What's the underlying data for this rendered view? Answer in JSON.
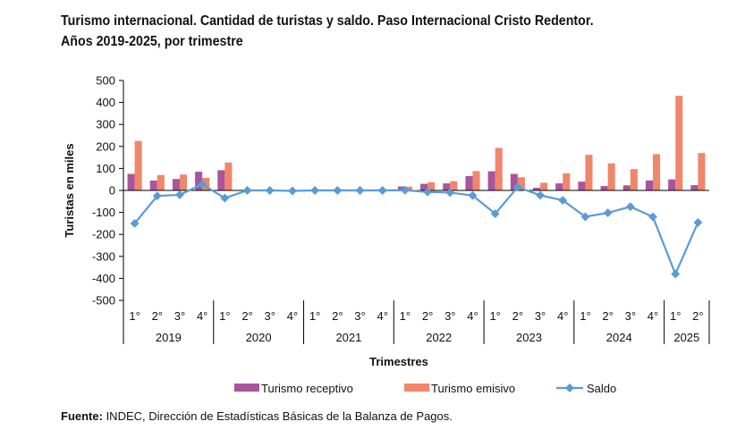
{
  "chart_data": {
    "type": "bar",
    "title_line1": "Turismo internacional. Cantidad de turistas y saldo. Paso Internacional Cristo Redentor.",
    "title_line2": "Años 2019-2025, por trimestre",
    "xlabel": "Trimestres",
    "ylabel": "Turistas en miles",
    "ylim": [
      -500,
      500
    ],
    "yticks": [
      500,
      400,
      300,
      200,
      100,
      0,
      -100,
      -200,
      -300,
      -400,
      -500
    ],
    "quarter_labels": [
      "1°",
      "2°",
      "3°",
      "4°",
      "1°",
      "2°",
      "3°",
      "4°",
      "1°",
      "2°",
      "3°",
      "4°",
      "1°",
      "2°",
      "3°",
      "4°",
      "1°",
      "2°",
      "3°",
      "4°",
      "1°",
      "2°",
      "3°",
      "4°",
      "1°",
      "2°"
    ],
    "years": [
      {
        "label": "2019",
        "quarters": 4
      },
      {
        "label": "2020",
        "quarters": 4
      },
      {
        "label": "2021",
        "quarters": 4
      },
      {
        "label": "2022",
        "quarters": 4
      },
      {
        "label": "2023",
        "quarters": 4
      },
      {
        "label": "2024",
        "quarters": 4
      },
      {
        "label": "2025",
        "quarters": 2
      }
    ],
    "series": [
      {
        "name": "Turismo receptivo",
        "type": "bar",
        "color": "#a8559e",
        "values": [
          75,
          45,
          52,
          85,
          92,
          0,
          0,
          0,
          0,
          0,
          0,
          0,
          18,
          30,
          32,
          65,
          87,
          75,
          12,
          32,
          40,
          20,
          23,
          45,
          50,
          24
        ]
      },
      {
        "name": "Turismo emisivo",
        "type": "bar",
        "color": "#f0866a",
        "values": [
          225,
          70,
          72,
          57,
          127,
          0,
          0,
          0,
          0,
          0,
          0,
          0,
          17,
          37,
          42,
          88,
          193,
          60,
          35,
          78,
          162,
          123,
          97,
          165,
          430,
          170
        ]
      },
      {
        "name": "Saldo",
        "type": "line",
        "color": "#5b9bd5",
        "values": [
          -150,
          -25,
          -20,
          28,
          -35,
          0,
          0,
          -2,
          0,
          0,
          0,
          0,
          1,
          -7,
          -10,
          -23,
          -106,
          15,
          -22,
          -45,
          -120,
          -102,
          -74,
          -120,
          -380,
          -146
        ]
      }
    ],
    "legend_position": "bottom",
    "grid": false
  },
  "footer": {
    "label": "Fuente:",
    "text": " INDEC, Dirección de Estadísticas Básicas de la Balanza de Pagos."
  }
}
